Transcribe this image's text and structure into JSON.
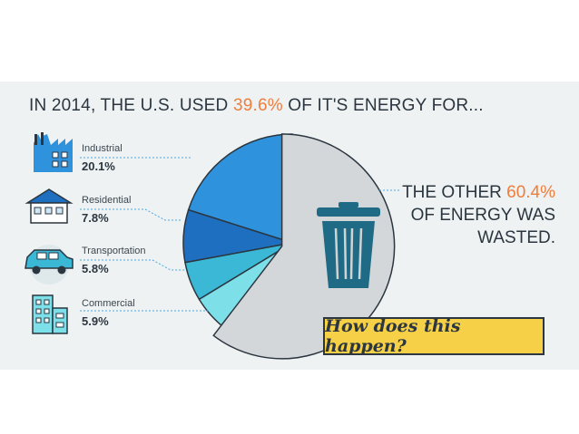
{
  "headline": {
    "prefix": "IN 2014, THE U.S. USED ",
    "highlight": "39.6%",
    "suffix": " OF IT'S ENERGY FOR..."
  },
  "wasted_text": {
    "line1_prefix": "THE OTHER ",
    "line1_highlight": "60.4%",
    "line2": "OF ENERGY WAS",
    "line3": "WASTED."
  },
  "cta_label": "How does this happen?",
  "icons": [
    "factory-icon",
    "house-icon",
    "car-icon",
    "building-icon",
    "trash-can-icon"
  ],
  "colors": {
    "accent": "#ef7d3c",
    "industrial": "#2e93dc",
    "residential": "#1f6fc1",
    "transportation": "#3ab8d6",
    "commercial": "#7ddfe8",
    "wasted": "#d4d7da",
    "cta": "#f6d046"
  },
  "chart_data": {
    "type": "pie",
    "slices": [
      {
        "label": "Industrial",
        "value": 20.1,
        "display": "20.1%"
      },
      {
        "label": "Residential",
        "value": 7.8,
        "display": "7.8%"
      },
      {
        "label": "Transportation",
        "value": 5.8,
        "display": "5.8%"
      },
      {
        "label": "Commercial",
        "value": 5.9,
        "display": "5.9%"
      },
      {
        "label": "Wasted",
        "value": 60.4,
        "display": "60.4%"
      }
    ]
  }
}
